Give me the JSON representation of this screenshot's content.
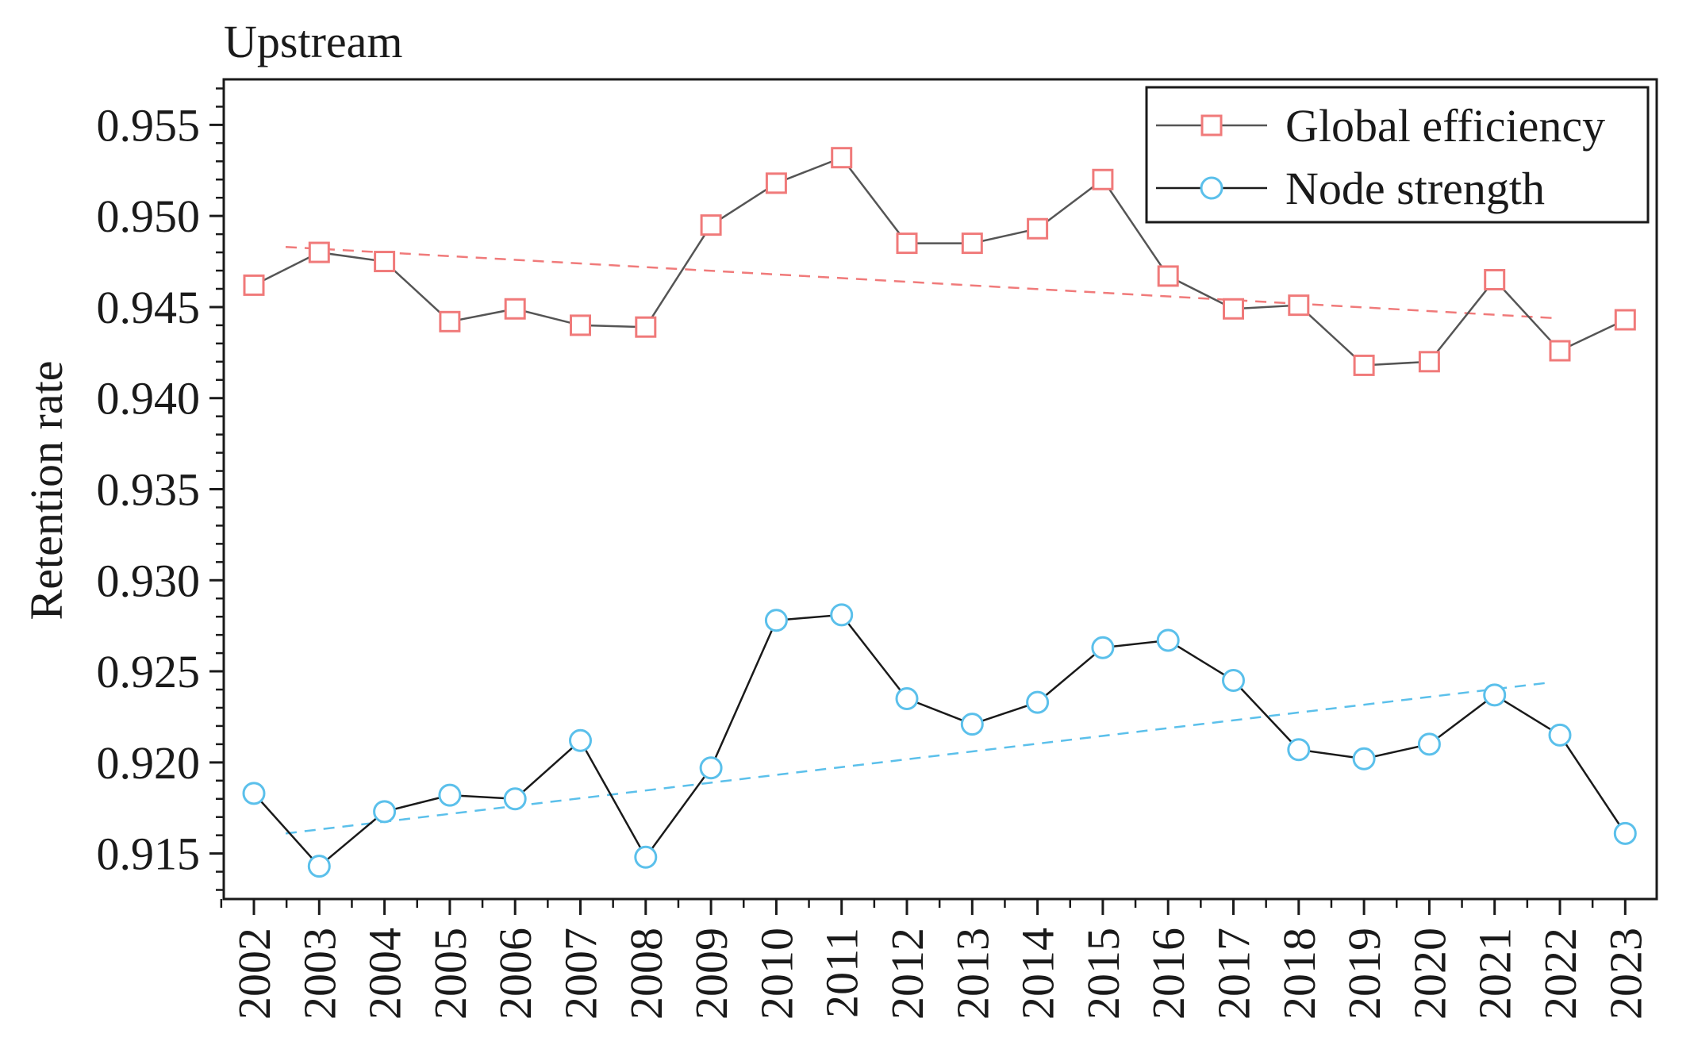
{
  "chart_data": {
    "type": "line",
    "title": "Upstream",
    "xlabel": "",
    "ylabel": "Retention rate",
    "ylim": [
      0.9125,
      0.9575
    ],
    "yticks": [
      "0.915",
      "0.920",
      "0.925",
      "0.930",
      "0.935",
      "0.940",
      "0.945",
      "0.950",
      "0.955"
    ],
    "categories": [
      "2002",
      "2003",
      "2004",
      "2005",
      "2006",
      "2007",
      "2008",
      "2009",
      "2010",
      "2011",
      "2012",
      "2013",
      "2014",
      "2015",
      "2016",
      "2017",
      "2018",
      "2019",
      "2020",
      "2021",
      "2022",
      "2023"
    ],
    "legend_position": "top-right",
    "series": [
      {
        "name": "Global efficiency",
        "marker": "square",
        "marker_color": "#f07a7a",
        "line_color": "#555555",
        "values": [
          0.9462,
          0.948,
          0.9475,
          0.9442,
          0.9449,
          0.944,
          0.9439,
          0.9495,
          0.9518,
          0.9532,
          0.9485,
          0.9485,
          0.9493,
          0.952,
          0.9467,
          0.9449,
          0.9451,
          0.9418,
          0.942,
          0.9465,
          0.9426,
          0.9443
        ],
        "trend": {
          "start_year": "2002",
          "end_year": "2022",
          "start_value": 0.9483,
          "end_value": 0.9444,
          "color": "#f07a7a"
        }
      },
      {
        "name": "Node strength",
        "marker": "circle",
        "marker_color": "#5bc0eb",
        "line_color": "#1a1a1a",
        "values": [
          0.9183,
          0.9143,
          0.9173,
          0.9182,
          0.918,
          0.9212,
          0.9148,
          0.9197,
          0.9278,
          0.9281,
          0.9235,
          0.9221,
          0.9233,
          0.9263,
          0.9267,
          0.9245,
          0.9207,
          0.9202,
          0.921,
          0.9237,
          0.9215,
          0.9161
        ],
        "trend": {
          "start_year": "2002",
          "end_year": "2022",
          "start_value": 0.9161,
          "end_value": 0.9244,
          "color": "#5bc0eb"
        }
      }
    ]
  }
}
